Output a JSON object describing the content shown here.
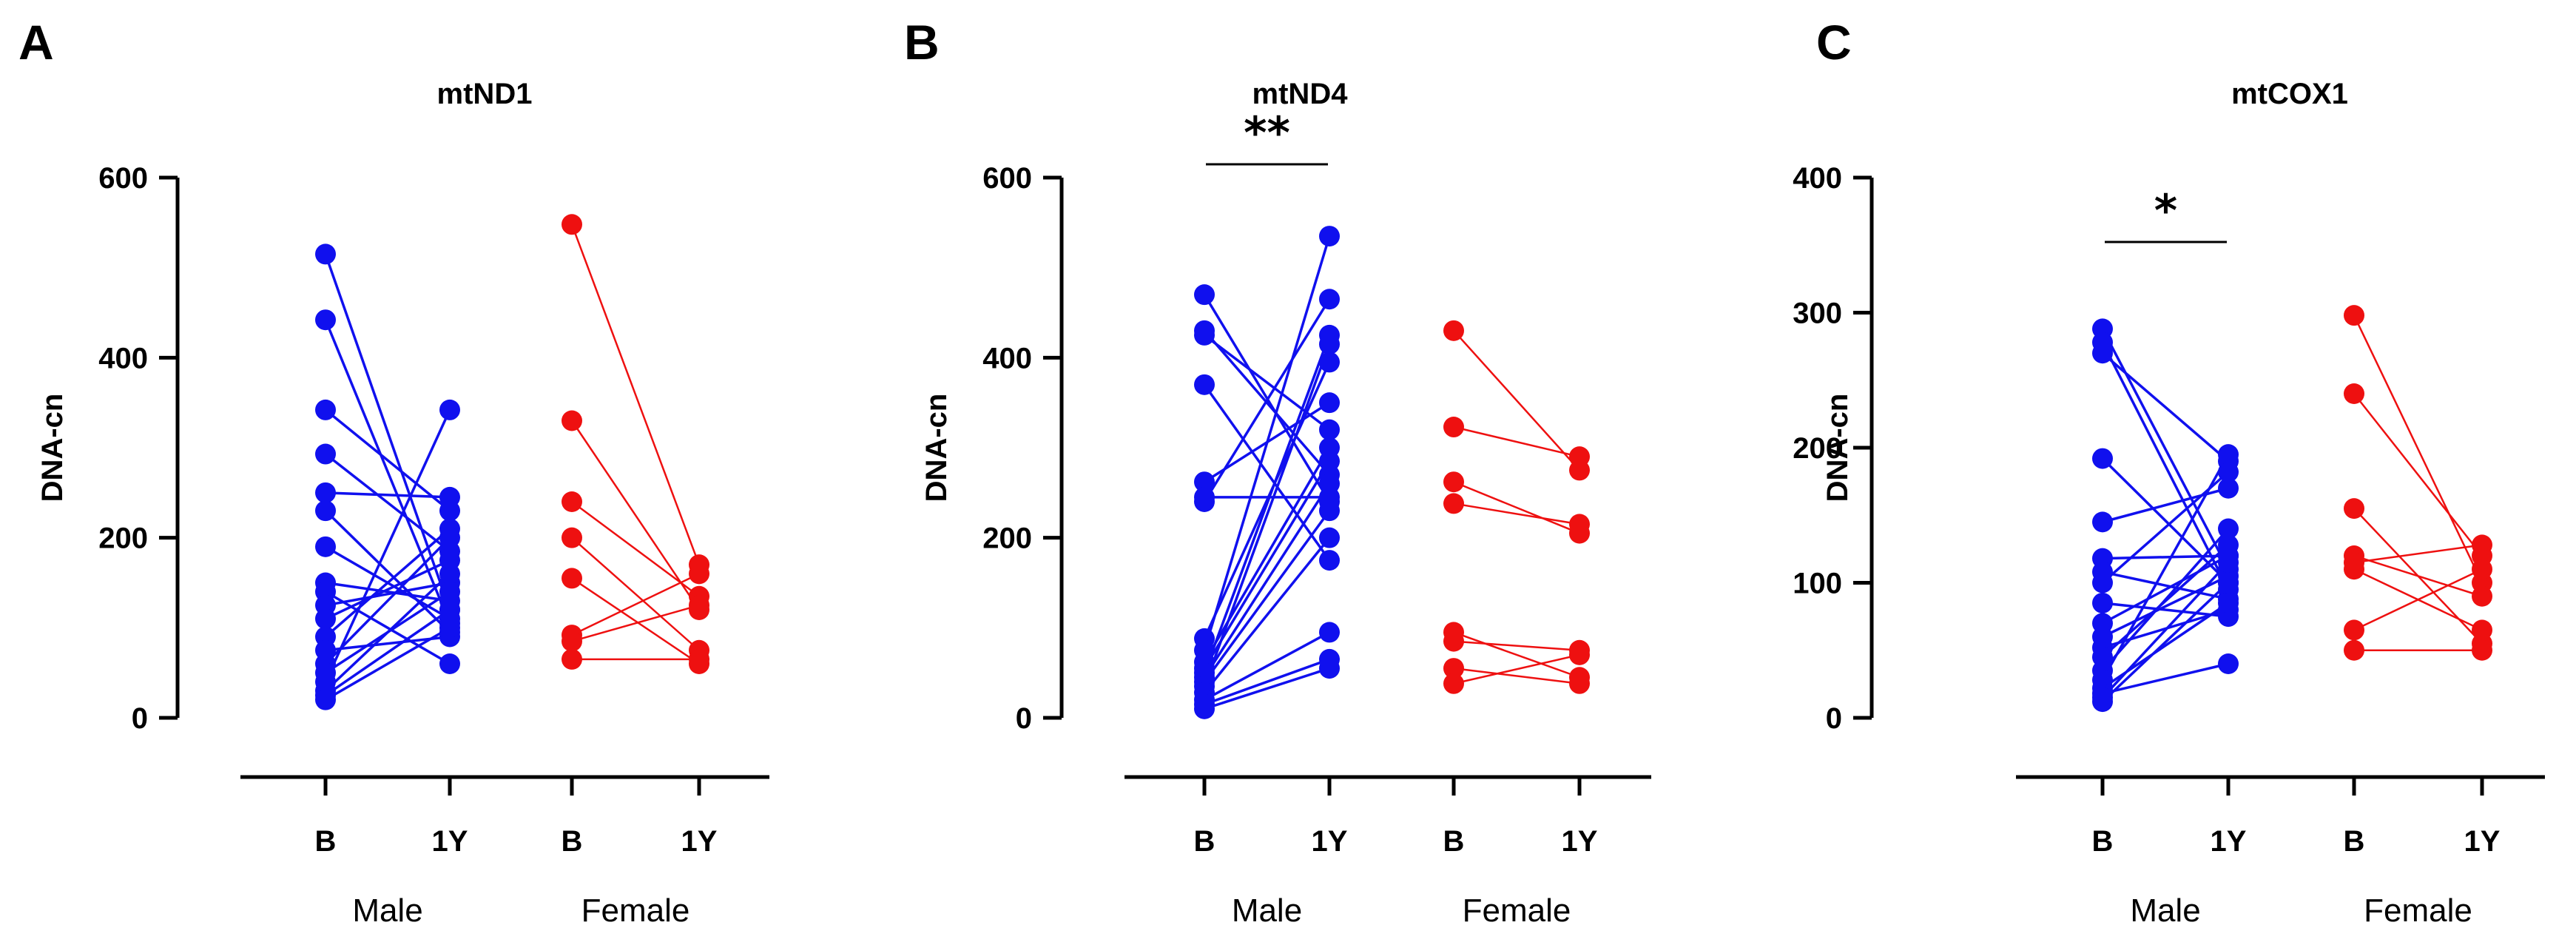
{
  "colors": {
    "male": "#1010ee",
    "female": "#ee1010",
    "axis": "#000000"
  },
  "chart_data": [
    {
      "panel": "A",
      "type": "scatter",
      "title": "mtND1",
      "ylabel": "DNA-cn",
      "ylim": [
        0,
        600
      ],
      "yticks": [
        0,
        200,
        400,
        600
      ],
      "categories": [
        "B",
        "1Y",
        "B",
        "1Y"
      ],
      "groups": [
        "Male",
        "Female"
      ],
      "significance": "",
      "series": [
        {
          "group": "Male",
          "pairs": [
            [
              515,
              120
            ],
            [
              442,
              105
            ],
            [
              342,
              230
            ],
            [
              293,
              185
            ],
            [
              250,
              245
            ],
            [
              230,
              95
            ],
            [
              190,
              110
            ],
            [
              150,
              130
            ],
            [
              140,
              60
            ],
            [
              125,
              150
            ],
            [
              110,
              175
            ],
            [
              90,
              210
            ],
            [
              75,
              90
            ],
            [
              60,
              200
            ],
            [
              50,
              140
            ],
            [
              40,
              342
            ],
            [
              30,
              160
            ],
            [
              25,
              120
            ],
            [
              20,
              100
            ]
          ]
        },
        {
          "group": "Female",
          "pairs": [
            [
              548,
              170
            ],
            [
              330,
              120
            ],
            [
              240,
              135
            ],
            [
              200,
              75
            ],
            [
              155,
              60
            ],
            [
              92,
              160
            ],
            [
              85,
              125
            ],
            [
              65,
              65
            ]
          ]
        }
      ]
    },
    {
      "panel": "B",
      "type": "scatter",
      "title": "mtND4",
      "ylabel": "DNA-cn",
      "ylim": [
        0,
        600
      ],
      "yticks": [
        0,
        200,
        400,
        600
      ],
      "categories": [
        "B",
        "1Y",
        "B",
        "1Y"
      ],
      "groups": [
        "Male",
        "Female"
      ],
      "significance": "**",
      "series": [
        {
          "group": "Male",
          "pairs": [
            [
              470,
              240
            ],
            [
              430,
              270
            ],
            [
              425,
              320
            ],
            [
              370,
              175
            ],
            [
              262,
              350
            ],
            [
              245,
              245
            ],
            [
              240,
              465
            ],
            [
              88,
              395
            ],
            [
              75,
              535
            ],
            [
              62,
              300
            ],
            [
              55,
              285
            ],
            [
              50,
              425
            ],
            [
              45,
              260
            ],
            [
              40,
              230
            ],
            [
              35,
              415
            ],
            [
              28,
              200
            ],
            [
              20,
              95
            ],
            [
              15,
              65
            ],
            [
              10,
              55
            ]
          ]
        },
        {
          "group": "Female",
          "pairs": [
            [
              430,
              275
            ],
            [
              323,
              290
            ],
            [
              262,
              205
            ],
            [
              238,
              215
            ],
            [
              95,
              45
            ],
            [
              85,
              75
            ],
            [
              55,
              38
            ],
            [
              38,
              70
            ]
          ]
        }
      ]
    },
    {
      "panel": "C",
      "type": "scatter",
      "title": "mtCOX1",
      "ylabel": "DNA-cn",
      "ylim": [
        0,
        400
      ],
      "yticks": [
        0,
        100,
        200,
        300,
        400
      ],
      "categories": [
        "B",
        "1Y",
        "B",
        "1Y"
      ],
      "groups": [
        "Male",
        "Female"
      ],
      "significance": "*",
      "series": [
        {
          "group": "Male",
          "pairs": [
            [
              288,
              110
            ],
            [
              278,
              95
            ],
            [
              270,
              190
            ],
            [
              192,
              100
            ],
            [
              145,
              170
            ],
            [
              118,
              120
            ],
            [
              108,
              88
            ],
            [
              100,
              182
            ],
            [
              85,
              75
            ],
            [
              70,
              120
            ],
            [
              60,
              105
            ],
            [
              52,
              80
            ],
            [
              45,
              128
            ],
            [
              35,
              140
            ],
            [
              28,
              195
            ],
            [
              22,
              85
            ],
            [
              18,
              40
            ],
            [
              15,
              115
            ],
            [
              12,
              100
            ]
          ]
        },
        {
          "group": "Female",
          "pairs": [
            [
              298,
              100
            ],
            [
              240,
              120
            ],
            [
              155,
              55
            ],
            [
              120,
              90
            ],
            [
              115,
              128
            ],
            [
              110,
              65
            ],
            [
              65,
              110
            ],
            [
              50,
              50
            ]
          ]
        }
      ]
    }
  ]
}
